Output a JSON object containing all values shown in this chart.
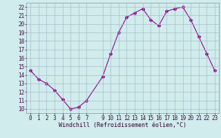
{
  "x": [
    0,
    1,
    2,
    3,
    4,
    5,
    6,
    7,
    9,
    10,
    11,
    12,
    13,
    14,
    15,
    16,
    17,
    18,
    19,
    20,
    21,
    22,
    23
  ],
  "y": [
    14.5,
    13.5,
    13.0,
    12.2,
    11.1,
    10.0,
    10.2,
    11.0,
    13.8,
    16.5,
    19.0,
    20.8,
    21.3,
    21.8,
    20.5,
    19.8,
    21.5,
    21.8,
    22.0,
    20.5,
    18.5,
    16.5,
    14.5
  ],
  "line_color": "#880088",
  "marker": "D",
  "marker_size": 2,
  "bg_color": "#d0ecec",
  "grid_color": "#aabbcc",
  "xlabel": "Windchill (Refroidissement éolien,°C)",
  "xlabel_fontsize": 6,
  "yticks": [
    10,
    11,
    12,
    13,
    14,
    15,
    16,
    17,
    18,
    19,
    20,
    21,
    22
  ],
  "xticks": [
    0,
    1,
    2,
    3,
    4,
    5,
    6,
    7,
    9,
    10,
    11,
    12,
    13,
    14,
    15,
    16,
    17,
    18,
    19,
    20,
    21,
    22,
    23
  ],
  "ylim": [
    9.5,
    22.5
  ],
  "xlim": [
    -0.5,
    23.5
  ],
  "tick_fontsize": 5.5,
  "linewidth": 0.8
}
